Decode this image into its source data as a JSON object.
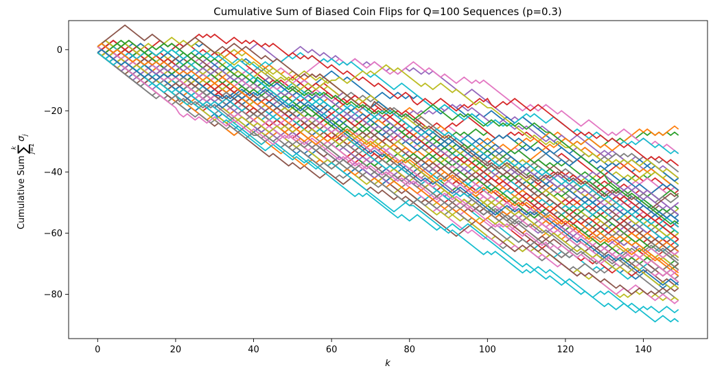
{
  "chart_data": {
    "type": "line",
    "title": "Cumulative Sum of Biased Coin Flips for Q=100 Sequences (p=0.3)",
    "xlabel": "k",
    "ylabel_prefix": "Cumulative Sum",
    "ylabel_math": {
      "operator": "∑",
      "upper": "k",
      "lower": "j=1",
      "term": "σ",
      "subscript": "j"
    },
    "xlim": [
      -7.45,
      156.45
    ],
    "ylim": [
      -94.5,
      9.5
    ],
    "xticks": [
      0,
      20,
      40,
      60,
      80,
      100,
      120,
      140
    ],
    "yticks": [
      0,
      -20,
      -40,
      -60,
      -80
    ],
    "n_sequences": 100,
    "n_steps": 150,
    "p_up": 0.3,
    "start_values": [
      1,
      -1
    ],
    "final_value_range": [
      -90,
      -38
    ],
    "grid": false,
    "legend": "none",
    "colors": [
      "#1f77b4",
      "#ff7f0e",
      "#2ca02c",
      "#d62728",
      "#9467bd",
      "#8c564b",
      "#e377c2",
      "#7f7f7f",
      "#bcbd22",
      "#17becf"
    ],
    "representative_series": [
      {
        "color": "#d62728",
        "points": [
          [
            0,
            1
          ],
          [
            50,
            -1
          ],
          [
            80,
            -16
          ],
          [
            100,
            -17
          ],
          [
            120,
            -25
          ],
          [
            140,
            -35
          ],
          [
            149,
            -38
          ]
        ]
      },
      {
        "color": "#bcbd22",
        "points": [
          [
            0,
            1
          ],
          [
            30,
            -2
          ],
          [
            60,
            -9
          ],
          [
            90,
            -13
          ],
          [
            100,
            -18
          ],
          [
            120,
            -33
          ],
          [
            149,
            -43
          ]
        ]
      },
      {
        "color": "#8c564b",
        "points": [
          [
            0,
            1
          ],
          [
            4,
            5
          ],
          [
            10,
            5
          ],
          [
            25,
            4
          ],
          [
            40,
            -1
          ],
          [
            70,
            -18
          ],
          [
            110,
            -42
          ],
          [
            149,
            -48
          ]
        ]
      },
      {
        "color": "#2ca02c",
        "points": [
          [
            0,
            1
          ],
          [
            40,
            -10
          ],
          [
            70,
            -20
          ],
          [
            115,
            -26
          ],
          [
            130,
            -42
          ],
          [
            149,
            -58
          ]
        ]
      },
      {
        "color": "#17becf",
        "points": [
          [
            0,
            -1
          ],
          [
            20,
            -15
          ],
          [
            50,
            -35
          ],
          [
            80,
            -50
          ],
          [
            100,
            -66
          ],
          [
            120,
            -76
          ],
          [
            140,
            -84
          ],
          [
            149,
            -84
          ]
        ]
      },
      {
        "color": "#17becf",
        "points": [
          [
            0,
            -1
          ],
          [
            30,
            -22
          ],
          [
            60,
            -42
          ],
          [
            85,
            -57
          ],
          [
            110,
            -70
          ],
          [
            130,
            -80
          ],
          [
            140,
            -86
          ],
          [
            149,
            -90
          ]
        ]
      },
      {
        "color": "#7f7f7f",
        "points": [
          [
            0,
            1
          ],
          [
            20,
            -16
          ],
          [
            40,
            -29
          ],
          [
            70,
            -39
          ],
          [
            100,
            -52
          ],
          [
            149,
            -68
          ]
        ]
      },
      {
        "color": "#e377c2",
        "points": [
          [
            0,
            1
          ],
          [
            20,
            -20
          ],
          [
            60,
            -34
          ],
          [
            90,
            -48
          ],
          [
            115,
            -64
          ],
          [
            149,
            -72
          ]
        ]
      },
      {
        "color": "#1f77b4",
        "points": [
          [
            0,
            -1
          ],
          [
            30,
            -14
          ],
          [
            70,
            -34
          ],
          [
            110,
            -54
          ],
          [
            130,
            -68
          ],
          [
            149,
            -78
          ]
        ]
      },
      {
        "color": "#ff7f0e",
        "points": [
          [
            0,
            1
          ],
          [
            25,
            -8
          ],
          [
            60,
            -30
          ],
          [
            100,
            -46
          ],
          [
            130,
            -62
          ],
          [
            149,
            -74
          ]
        ]
      }
    ]
  }
}
